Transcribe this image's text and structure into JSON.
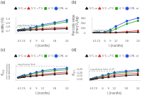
{
  "chart_data": [
    {
      "type": "line",
      "title": "(a)",
      "x_label": "t (months)",
      "y_label": "acidity (%)",
      "x": [
        0,
        1,
        2,
        3,
        6,
        9,
        12,
        18,
        24
      ],
      "xlim": [
        -1,
        25
      ],
      "xticks": [
        0,
        1,
        2,
        3,
        6,
        9,
        12,
        18,
        24
      ],
      "ylim": [
        0.65,
        1.05
      ],
      "yticks": [
        0.7,
        0.8,
        0.9,
        {
          "value": 1.0,
          "label": "1.0"
        }
      ],
      "grid": false,
      "legend": "top",
      "reference_line": {
        "value": 0.8,
        "label": "regulatory limit"
      },
      "series": [
        {
          "name": "5°C at",
          "color": "#111111",
          "marker": "triangle",
          "values": [
            0.72,
            0.722,
            0.724,
            0.726,
            0.73,
            0.735,
            0.74,
            0.75,
            0.76
          ],
          "errors": [
            0.018,
            0.01805,
            0.0181,
            0.01815,
            0.01825,
            0.018375,
            0.0185,
            0.01875,
            0.019
          ]
        },
        {
          "name": "5°C +7°C",
          "color": "#e02020",
          "marker": "triangle",
          "values": [
            0.72,
            0.724,
            0.728,
            0.732,
            0.742,
            0.752,
            0.762,
            0.775,
            0.785
          ],
          "errors": [
            0.018,
            0.0181,
            0.0182,
            0.0183,
            0.01855,
            0.0188,
            0.01905,
            0.019375,
            0.019625
          ]
        },
        {
          "name": "4 °C",
          "color": "#20a020",
          "marker": "square",
          "values": [
            0.72,
            0.726,
            0.732,
            0.74,
            0.76,
            0.79,
            0.83,
            0.88,
            0.93
          ],
          "errors": [
            0.018,
            0.01815,
            0.0183,
            0.0185,
            0.019,
            0.01975,
            0.02075,
            0.022,
            0.02325
          ]
        },
        {
          "name": "CRL at",
          "color": "#2050e0",
          "marker": "circle",
          "values": [
            0.72,
            0.728,
            0.736,
            0.748,
            0.778,
            0.815,
            0.86,
            0.91,
            0.97
          ],
          "errors": [
            0.018,
            0.0182,
            0.0184,
            0.0187,
            0.01945,
            0.020375,
            0.0215,
            0.02275,
            0.02425
          ]
        }
      ]
    },
    {
      "type": "line",
      "title": "(b)",
      "x_label": "t (months)",
      "y_label": "Peroxide value\n(meq O₂/kg)",
      "x": [
        0,
        1,
        2,
        3,
        6,
        9,
        12,
        18,
        24
      ],
      "xlim": [
        -1,
        25
      ],
      "xticks": [
        0,
        1,
        2,
        3,
        6,
        9,
        12,
        18,
        24
      ],
      "ylim": [
        0,
        320
      ],
      "yticks": [
        0,
        100,
        200,
        300
      ],
      "grid": false,
      "legend": "top",
      "reference_line": {
        "value": 20,
        "label": "regulatory limit"
      },
      "series": [
        {
          "name": "5°C at",
          "color": "#111111",
          "marker": "triangle",
          "values": [
            5,
            5,
            5,
            6,
            7,
            8,
            10,
            15,
            20
          ],
          "errors": [
            0.125,
            0.125,
            0.125,
            0.15,
            0.175,
            0.2,
            0.25,
            0.375,
            0.5
          ]
        },
        {
          "name": "5°C +7°C",
          "color": "#e02020",
          "marker": "triangle",
          "values": [
            5,
            5,
            6,
            6,
            8,
            10,
            15,
            30,
            50
          ],
          "errors": [
            0.125,
            0.125,
            0.15,
            0.15,
            0.2,
            0.25,
            0.375,
            0.75,
            1.25
          ]
        },
        {
          "name": "4 °C",
          "color": "#20a020",
          "marker": "square",
          "values": [
            5,
            6,
            7,
            8,
            14,
            35,
            85,
            185,
            245
          ],
          "errors": [
            0.125,
            0.15,
            0.175,
            0.2,
            0.35,
            0.875,
            2.125,
            4.625,
            6.125
          ]
        },
        {
          "name": "CRL at",
          "color": "#2050e0",
          "marker": "circle",
          "values": [
            5,
            6,
            8,
            10,
            22,
            65,
            135,
            240,
            300
          ],
          "errors": [
            0.125,
            0.15,
            0.2,
            0.25,
            0.55,
            1.625,
            3.375,
            6,
            7.5
          ]
        }
      ]
    },
    {
      "type": "line",
      "title": "(c)",
      "x_label": "t (months)",
      "y_label": "K₂₃₂",
      "x": [
        0,
        1,
        2,
        3,
        6,
        9,
        12,
        18,
        24
      ],
      "xlim": [
        -1,
        25
      ],
      "xticks": [
        0,
        1,
        2,
        3,
        6,
        9,
        12,
        18,
        24
      ],
      "ylim": [
        1.2,
        2.65
      ],
      "yticks": [
        1.4,
        1.6,
        1.8,
        {
          "value": 2.0,
          "label": "2.0"
        },
        2.2,
        2.4,
        2.6
      ],
      "grid": false,
      "legend": "top",
      "reference_line": {
        "value": 2.5,
        "label": "regulatory limit"
      },
      "series": [
        {
          "name": "5°C at",
          "color": "#111111",
          "marker": "triangle",
          "values": [
            1.48,
            1.5,
            1.52,
            1.54,
            1.58,
            1.63,
            1.68,
            1.76,
            1.83
          ],
          "errors": [
            0.037,
            0.0375,
            0.038,
            0.0385,
            0.0395,
            0.04075,
            0.042,
            0.044,
            0.04575
          ]
        },
        {
          "name": "5°C +7°C",
          "color": "#e02020",
          "marker": "triangle",
          "values": [
            1.48,
            1.51,
            1.54,
            1.57,
            1.64,
            1.71,
            1.78,
            1.88,
            1.97
          ],
          "errors": [
            0.037,
            0.03775,
            0.0385,
            0.03925,
            0.041,
            0.04275,
            0.0445,
            0.047,
            0.04925
          ]
        },
        {
          "name": "4 °C",
          "color": "#20a020",
          "marker": "square",
          "values": [
            1.48,
            1.53,
            1.58,
            1.63,
            1.75,
            1.87,
            1.98,
            2.1,
            2.18
          ],
          "errors": [
            0.037,
            0.03825,
            0.0395,
            0.04075,
            0.04375,
            0.04675,
            0.0495,
            0.0525,
            0.0545
          ]
        },
        {
          "name": "CRL at",
          "color": "#2050e0",
          "marker": "circle",
          "values": [
            1.48,
            1.55,
            1.62,
            1.68,
            1.82,
            1.96,
            2.09,
            2.22,
            2.32
          ],
          "errors": [
            0.037,
            0.03875,
            0.0405,
            0.042,
            0.0455,
            0.049,
            0.05225,
            0.0555,
            0.058
          ]
        }
      ]
    },
    {
      "type": "line",
      "title": "(d)",
      "x_label": "t (months)",
      "y_label": "K₂₇₀",
      "x": [
        0,
        1,
        2,
        3,
        6,
        9,
        12,
        18,
        24
      ],
      "xlim": [
        -1,
        25
      ],
      "xticks": [
        0,
        1,
        2,
        3,
        6,
        9,
        12,
        18,
        24
      ],
      "ylim": [
        0.08,
        0.32
      ],
      "yticks": [
        {
          "value": 0.1,
          "label": "0.10"
        },
        0.15,
        {
          "value": 0.2,
          "label": "0.20"
        },
        0.25
      ],
      "grid": false,
      "legend": "top",
      "reference_line": {
        "value": 0.22,
        "label": "regulatory limit: 0.22"
      },
      "series": [
        {
          "name": "5°C at",
          "color": "#111111",
          "marker": "triangle",
          "values": [
            0.1,
            0.104,
            0.108,
            0.112,
            0.12,
            0.13,
            0.14,
            0.155,
            0.165
          ],
          "errors": [
            0.0025,
            0.0026,
            0.0027,
            0.0028,
            0.003,
            0.00325,
            0.0035,
            0.003875,
            0.004125
          ]
        },
        {
          "name": "5°C +7°C",
          "color": "#e02020",
          "marker": "triangle",
          "values": [
            0.1,
            0.105,
            0.111,
            0.117,
            0.132,
            0.147,
            0.162,
            0.177,
            0.188
          ],
          "errors": [
            0.0025,
            0.002625,
            0.002775,
            0.002925,
            0.0033,
            0.003675,
            0.00405,
            0.004425,
            0.0047
          ]
        },
        {
          "name": "4 °C",
          "color": "#20a020",
          "marker": "square",
          "values": [
            0.1,
            0.107,
            0.115,
            0.123,
            0.145,
            0.167,
            0.185,
            0.203,
            0.218
          ],
          "errors": [
            0.0025,
            0.002675,
            0.002875,
            0.003075,
            0.003625,
            0.004175,
            0.004625,
            0.005075,
            0.00545
          ]
        },
        {
          "name": "CRL at",
          "color": "#2050e0",
          "marker": "circle",
          "values": [
            0.1,
            0.109,
            0.119,
            0.129,
            0.156,
            0.18,
            0.2,
            0.222,
            0.238
          ],
          "errors": [
            0.0025,
            0.002725,
            0.002975,
            0.003225,
            0.0039,
            0.0045,
            0.005,
            0.00555,
            0.00595
          ]
        }
      ]
    }
  ]
}
